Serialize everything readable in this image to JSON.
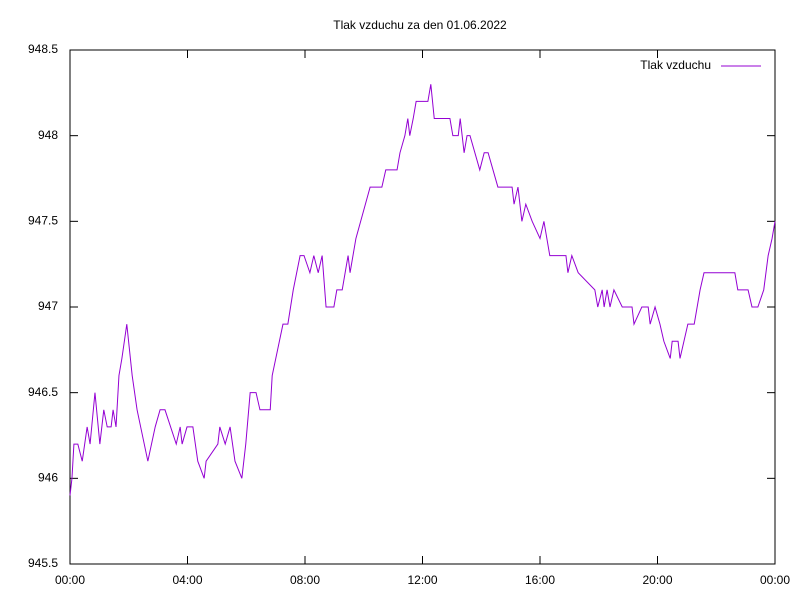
{
  "chart_data": {
    "type": "line",
    "title": "Tlak vzduchu za den 01.06.2022",
    "x": [
      0,
      4,
      8,
      16,
      25,
      35,
      41,
      51,
      61,
      69,
      76,
      84,
      88,
      94,
      100,
      106,
      116,
      127,
      137,
      159,
      174,
      184,
      194,
      217,
      225,
      229,
      239,
      251,
      261,
      274,
      278,
      302,
      306,
      317,
      327,
      337,
      351,
      359,
      368,
      380,
      388,
      409,
      413,
      435,
      445,
      456,
      470,
      478,
      490,
      498,
      507,
      515,
      523,
      539,
      545,
      556,
      568,
      572,
      584,
      613,
      637,
      645,
      668,
      674,
      684,
      690,
      694,
      701,
      707,
      731,
      737,
      744,
      776,
      782,
      793,
      797,
      805,
      811,
      817,
      837,
      846,
      854,
      874,
      903,
      907,
      915,
      923,
      931,
      944,
      960,
      968,
      980,
      1013,
      1017,
      1025,
      1038,
      1072,
      1078,
      1087,
      1091,
      1097,
      1103,
      1111,
      1128,
      1148,
      1152,
      1168,
      1181,
      1185,
      1195,
      1205,
      1213,
      1226,
      1230,
      1242,
      1246,
      1254,
      1262,
      1275,
      1287,
      1295,
      1358,
      1364,
      1385,
      1393,
      1405,
      1417,
      1426,
      1434,
      1440
    ],
    "series": [
      {
        "name": "Tlak vzduchu",
        "color": "#9400d3",
        "values": [
          945.9,
          946.0,
          946.2,
          946.2,
          946.1,
          946.3,
          946.2,
          946.5,
          946.2,
          946.4,
          946.3,
          946.3,
          946.4,
          946.3,
          946.6,
          946.7,
          946.9,
          946.6,
          946.4,
          946.1,
          946.3,
          946.4,
          946.4,
          946.2,
          946.3,
          946.2,
          946.3,
          946.3,
          946.1,
          946.0,
          946.1,
          946.2,
          946.3,
          946.2,
          946.3,
          946.1,
          946.0,
          946.2,
          946.5,
          946.5,
          946.4,
          946.4,
          946.6,
          946.9,
          946.9,
          947.1,
          947.3,
          947.3,
          947.2,
          947.3,
          947.2,
          947.3,
          947.0,
          947.0,
          947.1,
          947.1,
          947.3,
          947.2,
          947.4,
          947.7,
          947.7,
          947.8,
          947.8,
          947.9,
          948.0,
          948.1,
          948.0,
          948.1,
          948.2,
          948.2,
          948.3,
          948.1,
          948.1,
          948.0,
          948.0,
          948.1,
          947.9,
          948.0,
          948.0,
          947.8,
          947.9,
          947.9,
          947.7,
          947.7,
          947.6,
          947.7,
          947.5,
          947.6,
          947.5,
          947.4,
          947.5,
          947.3,
          947.3,
          947.2,
          947.3,
          947.2,
          947.1,
          947.0,
          947.1,
          947.0,
          947.1,
          947.0,
          947.1,
          947.0,
          947.0,
          946.9,
          947.0,
          947.0,
          946.9,
          947.0,
          946.9,
          946.8,
          946.7,
          946.8,
          946.8,
          946.7,
          946.8,
          946.9,
          946.9,
          947.1,
          947.2,
          947.2,
          947.1,
          947.1,
          947.0,
          947.0,
          947.1,
          947.3,
          947.4,
          947.5
        ]
      }
    ],
    "xlim": [
      0,
      1440
    ],
    "xticks": [
      {
        "value": 0,
        "label": "00:00"
      },
      {
        "value": 240,
        "label": "04:00"
      },
      {
        "value": 480,
        "label": "08:00"
      },
      {
        "value": 720,
        "label": "12:00"
      },
      {
        "value": 960,
        "label": "16:00"
      },
      {
        "value": 1200,
        "label": "20:00"
      },
      {
        "value": 1440,
        "label": "00:00"
      }
    ],
    "ylim": [
      945.5,
      948.5
    ],
    "yticks": [
      945.5,
      946,
      946.5,
      947,
      947.5,
      948,
      948.5
    ],
    "legend": "top-right",
    "grid": false
  }
}
